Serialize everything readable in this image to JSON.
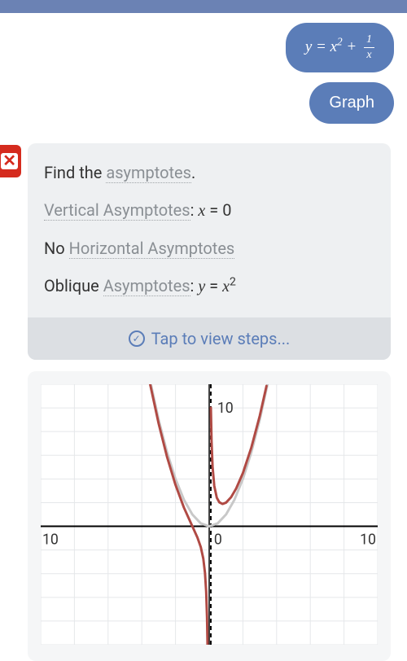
{
  "header": {
    "color": "#6b82b4"
  },
  "messages": {
    "equation_html": "y = x<span class='math-sup'>2</span> + <span class='frac'><span class='num'>1</span><span class='den'>x</span></span>",
    "action": "Graph"
  },
  "result": {
    "intro_prefix": "Find the ",
    "intro_term": "asymptotes",
    "intro_suffix": ".",
    "vertical_term": "Vertical Asymptotes",
    "vertical_value_html": ": <span class='mathvar'>x</span> = 0",
    "horizontal_prefix": "No ",
    "horizontal_term": "Horizontal Asymptotes",
    "oblique_prefix": "Oblique ",
    "oblique_term": "Asymptotes",
    "oblique_value_html": ": <span class='mathvar'>y</span> = <span class='mathvar'>x</span><span class='math-sup'>2</span>",
    "steps_label": "Tap to view steps..."
  },
  "graph": {
    "type": "line",
    "xlim": [
      -10,
      10
    ],
    "ylim": [
      -10,
      12
    ],
    "xtick_labels": {
      "-10": "10",
      "0": "0",
      "10": "10"
    },
    "ytick_labels": {
      "10": "10"
    },
    "tick_fontsize": 18,
    "background_color": "#ffffff",
    "grid_color": "#e5e7ea",
    "axis_color": "#000000",
    "asymptote_line": {
      "x": 0,
      "color": "#000000",
      "dash": "5,4",
      "width": 2
    },
    "series": [
      {
        "name": "oblique_asymptote_parabola",
        "color": "#c8c8c8",
        "width": 3,
        "formula": "y = x^2",
        "points": [
          [
            -3.5,
            12.25
          ],
          [
            -3,
            9
          ],
          [
            -2.5,
            6.25
          ],
          [
            -2,
            4
          ],
          [
            -1.5,
            2.25
          ],
          [
            -1,
            1
          ],
          [
            -0.5,
            0.25
          ],
          [
            0,
            0
          ],
          [
            0.5,
            0.25
          ],
          [
            1,
            1
          ],
          [
            1.5,
            2.25
          ],
          [
            2,
            4
          ],
          [
            2.5,
            6.25
          ],
          [
            3,
            9
          ],
          [
            3.5,
            12.25
          ]
        ]
      },
      {
        "name": "function_left",
        "color": "#b04a44",
        "width": 3,
        "formula": "y = x^2 + 1/x, x<0",
        "points": [
          [
            -3.5,
            11.96
          ],
          [
            -3,
            8.67
          ],
          [
            -2.5,
            5.85
          ],
          [
            -2,
            3.5
          ],
          [
            -1.5,
            1.58
          ],
          [
            -1,
            0
          ],
          [
            -0.7,
            -0.94
          ],
          [
            -0.5,
            -1.75
          ],
          [
            -0.35,
            -2.73
          ],
          [
            -0.25,
            -3.94
          ],
          [
            -0.18,
            -5.52
          ],
          [
            -0.13,
            -7.67
          ],
          [
            -0.1,
            -9.99
          ]
        ]
      },
      {
        "name": "function_right",
        "color": "#b04a44",
        "width": 3,
        "formula": "y = x^2 + 1/x, x>0",
        "points": [
          [
            0.1,
            10.01
          ],
          [
            0.14,
            7.16
          ],
          [
            0.2,
            5.04
          ],
          [
            0.3,
            3.42
          ],
          [
            0.45,
            2.42
          ],
          [
            0.6,
            2.03
          ],
          [
            0.79,
            1.89
          ],
          [
            1,
            2
          ],
          [
            1.3,
            2.46
          ],
          [
            1.6,
            3.19
          ],
          [
            2,
            4.5
          ],
          [
            2.5,
            6.65
          ],
          [
            3,
            9.33
          ],
          [
            3.4,
            11.85
          ]
        ]
      }
    ]
  }
}
